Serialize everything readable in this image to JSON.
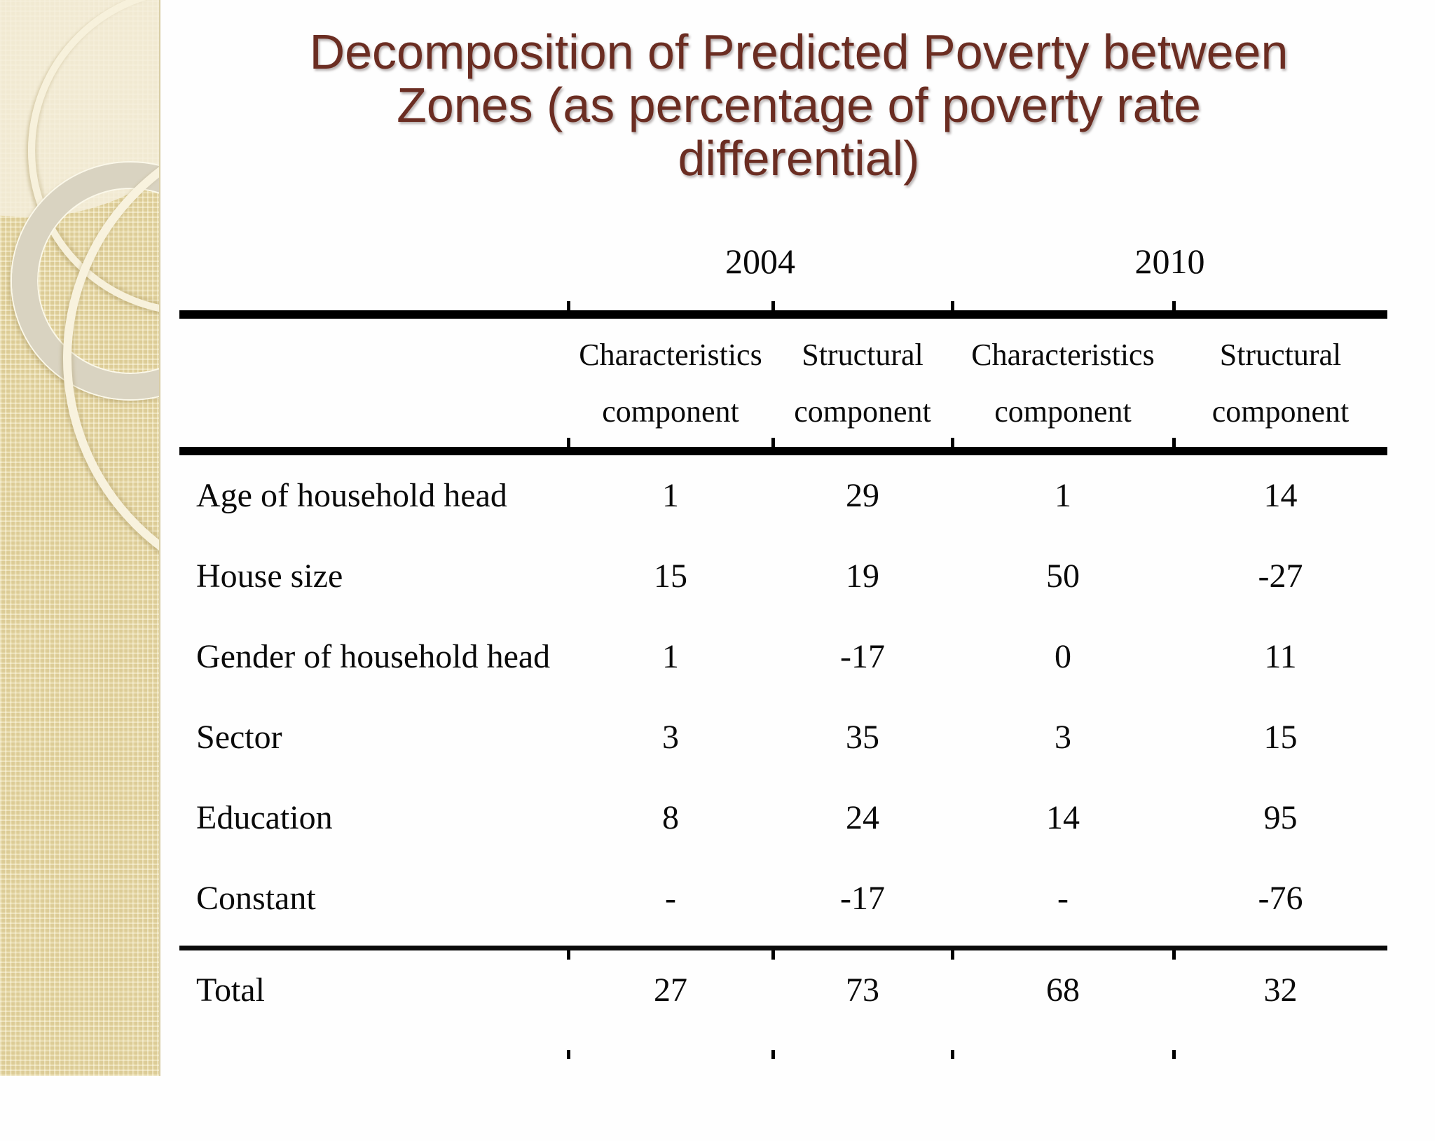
{
  "slide": {
    "title_lines": [
      "Decomposition of Predicted Poverty between",
      "Zones (as percentage of poverty rate",
      "differential)"
    ],
    "title_color": "#6b2d22",
    "accent_colors": {
      "sidebar_base": "#e9dcab",
      "sidebar_rings": "#d9d3c1",
      "table_rule": "#000000"
    }
  },
  "table": {
    "year_headers": [
      "2004",
      "2010"
    ],
    "col_headers": [
      {
        "line1": "Characteristics",
        "line2": "component"
      },
      {
        "line1": "Structural",
        "line2": "component"
      },
      {
        "line1": "Characteristics",
        "line2": "component"
      },
      {
        "line1": "Structural",
        "line2": "component"
      }
    ],
    "rows": [
      {
        "label": "Age of household head",
        "values": [
          "1",
          "29",
          "1",
          "14"
        ]
      },
      {
        "label": "House size",
        "values": [
          "15",
          "19",
          "50",
          "-27"
        ]
      },
      {
        "label": "Gender of household head",
        "values": [
          "1",
          "-17",
          "0",
          "11"
        ]
      },
      {
        "label": "Sector",
        "values": [
          "3",
          "35",
          "3",
          "15"
        ]
      },
      {
        "label": "Education",
        "values": [
          "8",
          "24",
          "14",
          "95"
        ]
      },
      {
        "label": "Constant",
        "values": [
          "-",
          "-17",
          "-",
          "-76"
        ]
      }
    ],
    "total_row": {
      "label": "Total",
      "values": [
        "27",
        "73",
        "68",
        "32"
      ]
    }
  },
  "chart_data": {
    "type": "table",
    "title": "Decomposition of Predicted Poverty between Zones (as percentage of poverty rate differential)",
    "column_groups": [
      "2004",
      "2010"
    ],
    "columns": [
      "2004 Characteristics component",
      "2004 Structural component",
      "2010 Characteristics component",
      "2010 Structural component"
    ],
    "row_labels": [
      "Age of household head",
      "House size",
      "Gender of household head",
      "Sector",
      "Education",
      "Constant",
      "Total"
    ],
    "values": [
      [
        1,
        29,
        1,
        14
      ],
      [
        15,
        19,
        50,
        -27
      ],
      [
        1,
        -17,
        0,
        11
      ],
      [
        3,
        35,
        3,
        15
      ],
      [
        8,
        24,
        14,
        95
      ],
      [
        null,
        -17,
        null,
        -76
      ],
      [
        27,
        73,
        68,
        32
      ]
    ]
  }
}
